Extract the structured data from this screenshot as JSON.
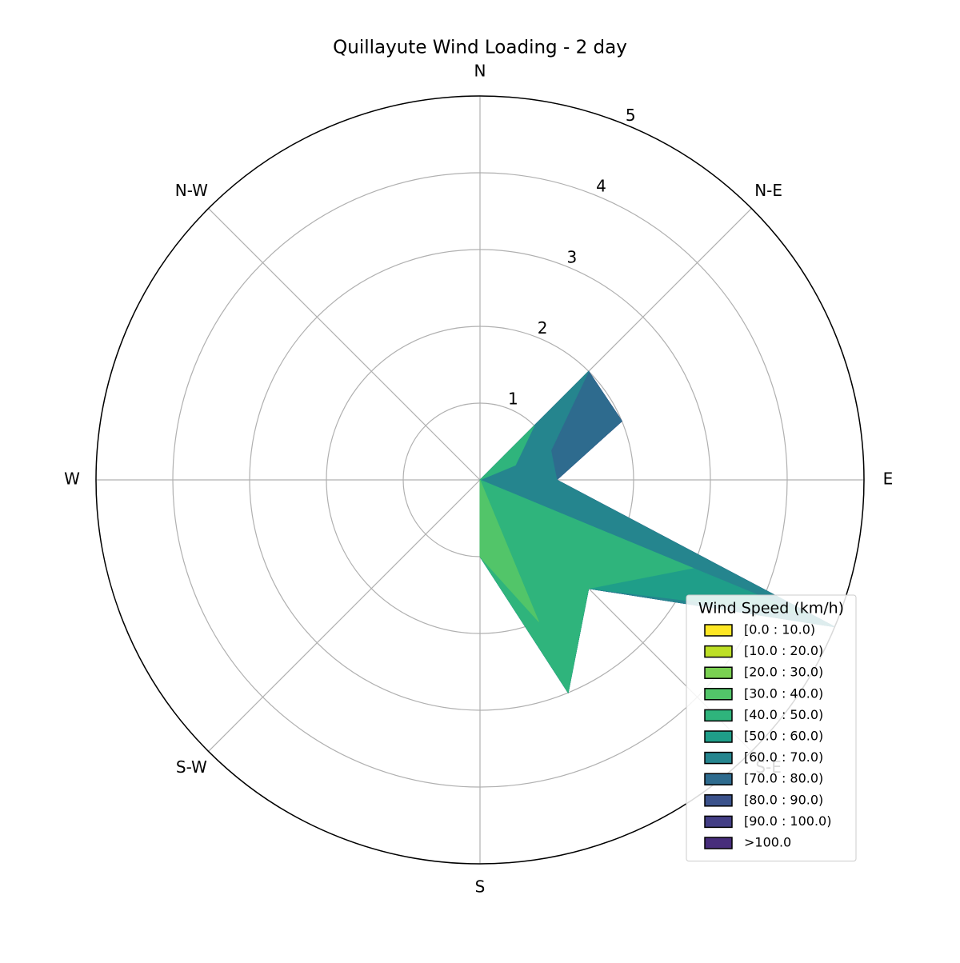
{
  "chart_data": {
    "type": "windrose",
    "title": "Quillayute Wind Loading - 2 day",
    "categories": [
      "N",
      null,
      "N-E",
      null,
      "E",
      null,
      "S-E",
      null,
      "S",
      null,
      "S-W",
      null,
      "W",
      null,
      "N-W",
      null
    ],
    "rlim": [
      0,
      5
    ],
    "rticks": [
      1,
      2,
      3,
      4,
      5
    ],
    "grid": true,
    "legend_title": "Wind Speed (km/h)",
    "legend_position": "lower right",
    "series": [
      {
        "name": "[0.0 : 10.0)",
        "color": "#fde725",
        "values": [
          0,
          0,
          0,
          0,
          0,
          0,
          0,
          0,
          0,
          0,
          0,
          0,
          0,
          0,
          0,
          0
        ]
      },
      {
        "name": "[10.0 : 20.0)",
        "color": "#bddf26",
        "values": [
          0,
          0,
          0,
          0,
          0,
          0,
          0,
          0,
          0,
          0,
          0,
          0,
          0,
          0,
          0,
          0
        ]
      },
      {
        "name": "[20.0 : 30.0)",
        "color": "#7ad151",
        "values": [
          0,
          0,
          0,
          0,
          0,
          0,
          0,
          0,
          0,
          0,
          0,
          0,
          0,
          0,
          0,
          0
        ]
      },
      {
        "name": "[30.0 : 40.0)",
        "color": "#52c569",
        "values": [
          0,
          0,
          0,
          0,
          0,
          0,
          0,
          2.0,
          1.0,
          0,
          0,
          0,
          0,
          0,
          0,
          0
        ]
      },
      {
        "name": "[40.0 : 50.0)",
        "color": "#2fb47c",
        "values": [
          0,
          0,
          1.0,
          0.5,
          0,
          3.0,
          2.0,
          1.0,
          0,
          0,
          0,
          0,
          0,
          0,
          0,
          0
        ]
      },
      {
        "name": "[50.0 : 60.0)",
        "color": "#1f9e89",
        "values": [
          0,
          0,
          0,
          0,
          0,
          1.6,
          0,
          0,
          0,
          0,
          0,
          0,
          0,
          0,
          0,
          0
        ]
      },
      {
        "name": "[60.0 : 70.0)",
        "color": "#25858e",
        "values": [
          0,
          0,
          1.0,
          0.5,
          1.0,
          0.4,
          0,
          0,
          0,
          0,
          0,
          0,
          0,
          0,
          0,
          0
        ]
      },
      {
        "name": "[70.0 : 80.0)",
        "color": "#2e6b8e",
        "values": [
          0,
          0,
          0,
          1.0,
          0,
          0,
          0,
          0,
          0,
          0,
          0,
          0,
          0,
          0,
          0,
          0
        ]
      },
      {
        "name": "[80.0 : 90.0)",
        "color": "#3b528b",
        "values": [
          0,
          0,
          0,
          0,
          0,
          0,
          0,
          0,
          0,
          0,
          0,
          0,
          0,
          0,
          0,
          0
        ]
      },
      {
        "name": "[90.0 : 100.0)",
        "color": "#433e85",
        "values": [
          0,
          0,
          0,
          0,
          0,
          0,
          0,
          0,
          0,
          0,
          0,
          0,
          0,
          0,
          0,
          0
        ]
      },
      {
        "name": ">100.0",
        "color": "#472d7b",
        "values": [
          0,
          0,
          0,
          0,
          0,
          0,
          0,
          0,
          0,
          0,
          0,
          0,
          0,
          0,
          0,
          0
        ]
      }
    ]
  }
}
